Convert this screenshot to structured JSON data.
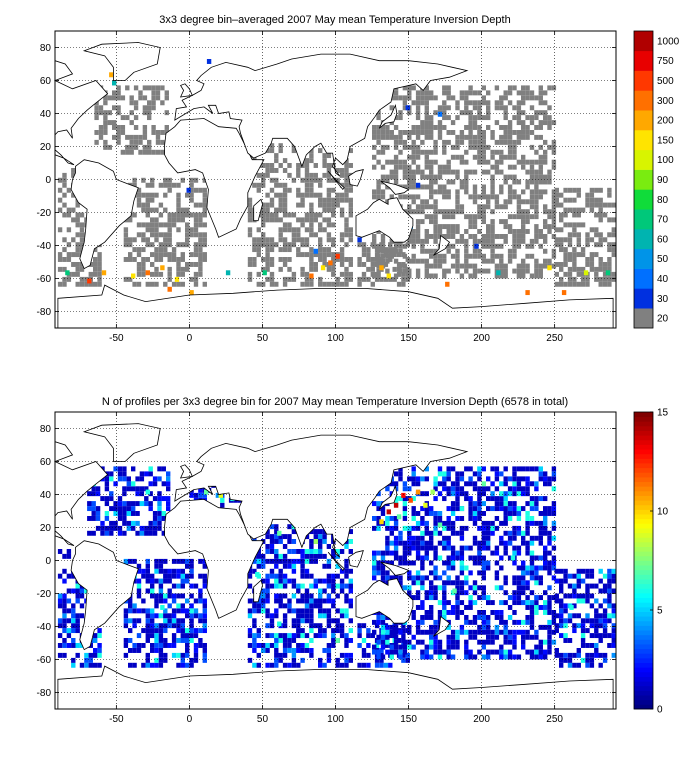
{
  "chart_data": [
    {
      "type": "heatmap",
      "title": "3x3 degree bin–averaged 2007 May mean Temperature Inversion Depth",
      "xlabel": "",
      "ylabel": "",
      "xlim": [
        -92,
        292
      ],
      "ylim": [
        -90,
        90
      ],
      "xticks": [
        -50,
        0,
        50,
        100,
        150,
        200,
        250
      ],
      "yticks": [
        -80,
        -60,
        -40,
        -20,
        0,
        20,
        40,
        60,
        80
      ],
      "grid": true,
      "grid_style": "dotted",
      "bin_size_deg": 3,
      "colorbar": {
        "labels": [
          "20",
          "30",
          "40",
          "50",
          "60",
          "70",
          "80",
          "90",
          "100",
          "150",
          "200",
          "300",
          "500",
          "750",
          "1000"
        ],
        "colors": [
          "#808080",
          "#0030e0",
          "#0070ff",
          "#0094e8",
          "#00b4b0",
          "#00c87a",
          "#10dc3a",
          "#7aec10",
          "#d8f400",
          "#ffe400",
          "#ffa800",
          "#ff7000",
          "#ff3800",
          "#e80000",
          "#b00000"
        ]
      },
      "regions": [
        {
          "x0": -90,
          "x1": -60,
          "y0": -65,
          "y1": 5,
          "level": 0
        },
        {
          "x0": -65,
          "x1": -15,
          "y0": 15,
          "y1": 55,
          "level": 0
        },
        {
          "x0": -45,
          "x1": 10,
          "y0": -65,
          "y1": 0,
          "level": 0
        },
        {
          "x0": 40,
          "x1": 110,
          "y0": -65,
          "y1": 20,
          "level": 0
        },
        {
          "x0": 115,
          "x1": 150,
          "y0": -65,
          "y1": -40,
          "level": 0
        },
        {
          "x0": 125,
          "x1": 250,
          "y0": -60,
          "y1": 55,
          "level": 0
        },
        {
          "x0": 250,
          "x1": 290,
          "y0": -65,
          "y1": -5,
          "level": 0
        }
      ],
      "highlights": [
        {
          "x": -55,
          "y": 62,
          "level": 10
        },
        {
          "x": -53,
          "y": 57,
          "level": 4
        },
        {
          "x": 12,
          "y": 70,
          "level": 1
        },
        {
          "x": 175,
          "y": 65,
          "level": 10
        },
        {
          "x": 148,
          "y": 42,
          "level": 1
        },
        {
          "x": 170,
          "y": 38,
          "level": 2
        },
        {
          "x": 155,
          "y": -5,
          "level": 1
        },
        {
          "x": -2,
          "y": -8,
          "level": 1
        },
        {
          "x": 85,
          "y": -45,
          "level": 2
        },
        {
          "x": 90,
          "y": -55,
          "level": 9
        },
        {
          "x": 95,
          "y": -52,
          "level": 11
        },
        {
          "x": 100,
          "y": -48,
          "level": 12
        },
        {
          "x": 82,
          "y": -60,
          "level": 11
        },
        {
          "x": -40,
          "y": -60,
          "level": 9
        },
        {
          "x": -30,
          "y": -58,
          "level": 11
        },
        {
          "x": -20,
          "y": -55,
          "level": 10
        },
        {
          "x": -10,
          "y": -62,
          "level": 9
        },
        {
          "x": -15,
          "y": -68,
          "level": 11
        },
        {
          "x": 0,
          "y": -70,
          "level": 10
        },
        {
          "x": 25,
          "y": -58,
          "level": 4
        },
        {
          "x": 50,
          "y": -58,
          "level": 5
        },
        {
          "x": 130,
          "y": -55,
          "level": 10
        },
        {
          "x": 135,
          "y": -60,
          "level": 9
        },
        {
          "x": 175,
          "y": -65,
          "level": 11
        },
        {
          "x": 210,
          "y": -58,
          "level": 4
        },
        {
          "x": 230,
          "y": -70,
          "level": 11
        },
        {
          "x": 255,
          "y": -70,
          "level": 11
        },
        {
          "x": 245,
          "y": -55,
          "level": 9
        },
        {
          "x": 270,
          "y": -58,
          "level": 8
        },
        {
          "x": 285,
          "y": -58,
          "level": 5
        },
        {
          "x": -85,
          "y": -58,
          "level": 5
        },
        {
          "x": -60,
          "y": -58,
          "level": 10
        },
        {
          "x": -70,
          "y": -63,
          "level": 12
        },
        {
          "x": 115,
          "y": -38,
          "level": 1
        },
        {
          "x": 150,
          "y": -30,
          "level": 3
        },
        {
          "x": 195,
          "y": -42,
          "level": 1
        }
      ]
    },
    {
      "type": "heatmap",
      "title": "N of profiles per 3x3 degree bin for 2007 May mean Temperature Inversion Depth  (6578 in total)",
      "xlabel": "",
      "ylabel": "",
      "xlim": [
        -92,
        292
      ],
      "ylim": [
        -90,
        90
      ],
      "xticks": [
        -50,
        0,
        50,
        100,
        150,
        200,
        250
      ],
      "yticks": [
        -80,
        -60,
        -40,
        -20,
        0,
        20,
        40,
        60,
        80
      ],
      "grid": true,
      "grid_style": "dotted",
      "bin_size_deg": 3,
      "total_profiles": 6578,
      "colorbar": {
        "range": [
          0,
          15
        ],
        "ticks": [
          0,
          5,
          10,
          15
        ],
        "colormap": "jet"
      },
      "regions": [
        {
          "x0": -90,
          "x1": -60,
          "y0": -65,
          "y1": 5,
          "level": 2
        },
        {
          "x0": -70,
          "x1": -15,
          "y0": 15,
          "y1": 55,
          "level": 2
        },
        {
          "x0": -45,
          "x1": 10,
          "y0": -65,
          "y1": 0,
          "level": 2
        },
        {
          "x0": 40,
          "x1": 110,
          "y0": -65,
          "y1": 20,
          "level": 2
        },
        {
          "x0": 115,
          "x1": 150,
          "y0": -65,
          "y1": -40,
          "level": 2
        },
        {
          "x0": 125,
          "x1": 250,
          "y0": -60,
          "y1": 55,
          "level": 2
        },
        {
          "x0": 250,
          "x1": 290,
          "y0": -65,
          "y1": -5,
          "level": 2
        },
        {
          "x0": 0,
          "x1": 40,
          "y0": 32,
          "y1": 45,
          "level": 3
        }
      ],
      "highlights": [
        {
          "x": 140,
          "y": 32,
          "level": 14
        },
        {
          "x": 145,
          "y": 38,
          "level": 13
        },
        {
          "x": 150,
          "y": 35,
          "level": 12
        },
        {
          "x": 135,
          "y": 28,
          "level": 14
        },
        {
          "x": 155,
          "y": 40,
          "level": 11
        },
        {
          "x": 160,
          "y": 32,
          "level": 9
        },
        {
          "x": 165,
          "y": 40,
          "level": 8
        },
        {
          "x": 130,
          "y": 22,
          "level": 10
        },
        {
          "x": 142,
          "y": 25,
          "level": 7
        },
        {
          "x": 170,
          "y": 20,
          "level": 7
        },
        {
          "x": 185,
          "y": 30,
          "level": 6
        },
        {
          "x": 200,
          "y": 45,
          "level": 7
        },
        {
          "x": 10,
          "y": 40,
          "level": 7
        },
        {
          "x": 20,
          "y": 38,
          "level": 9
        },
        {
          "x": 28,
          "y": 36,
          "level": 6
        },
        {
          "x": -30,
          "y": 40,
          "level": 6
        },
        {
          "x": 60,
          "y": 15,
          "level": 7
        },
        {
          "x": 85,
          "y": 10,
          "level": 8
        },
        {
          "x": 45,
          "y": -10,
          "level": 6
        },
        {
          "x": 120,
          "y": -30,
          "level": 6
        },
        {
          "x": 180,
          "y": -20,
          "level": 7
        },
        {
          "x": 220,
          "y": 0,
          "level": 6
        },
        {
          "x": -20,
          "y": -30,
          "level": 6
        },
        {
          "x": 260,
          "y": -30,
          "level": 6
        },
        {
          "x": 100,
          "y": -50,
          "level": 7
        },
        {
          "x": 60,
          "y": -40,
          "level": 6
        }
      ]
    }
  ]
}
